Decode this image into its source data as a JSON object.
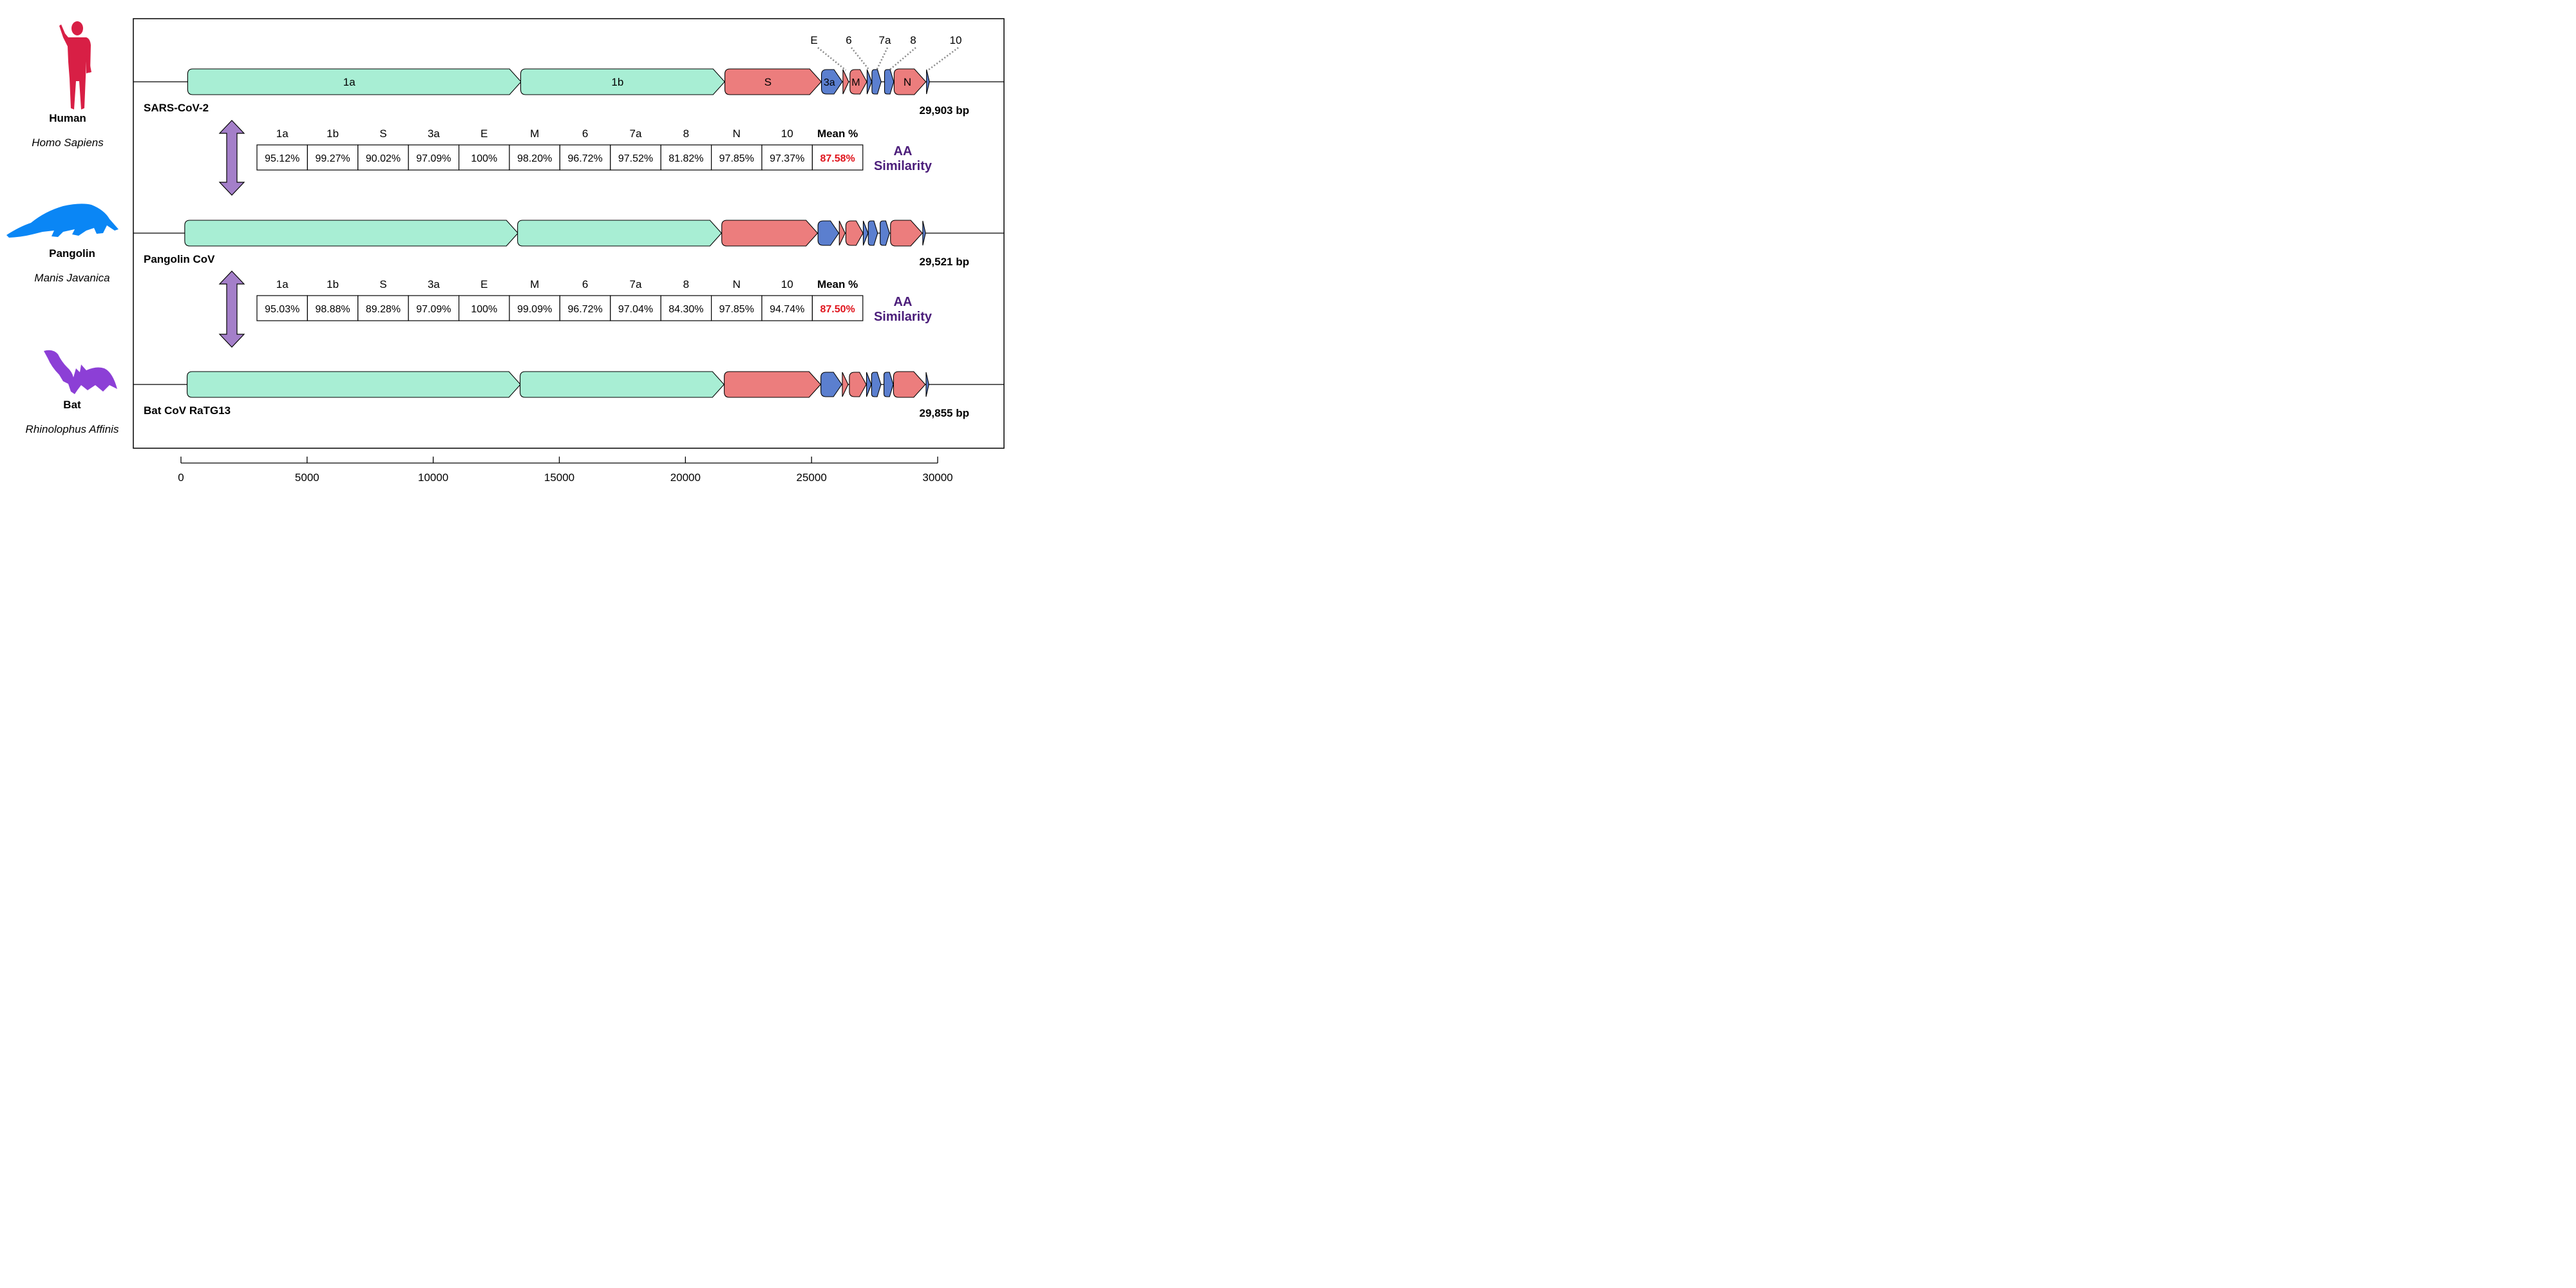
{
  "colors": {
    "orf1": "#a8eed4",
    "structural": "#ec7d7d",
    "accessory": "#5b7fcf",
    "arrow": "#a47fc9",
    "mean_value": "#e0141c",
    "similarity_label": "#4b1d7a",
    "human": "#d81f45",
    "pangolin": "#0a86f5",
    "bat": "#8c3fd6"
  },
  "species": [
    {
      "common": "Human",
      "latin": "Homo Sapiens",
      "icon": "human-silhouette-icon"
    },
    {
      "common": "Pangolin",
      "latin": "Manis Javanica",
      "icon": "pangolin-silhouette-icon"
    },
    {
      "common": "Bat",
      "latin": "Rhinolophus Affinis",
      "icon": "bat-silhouette-icon"
    }
  ],
  "chart_data": {
    "type": "genome-map",
    "axis": {
      "min": 0,
      "max": 30000,
      "ticks": [
        0,
        5000,
        10000,
        15000,
        20000,
        25000,
        30000
      ]
    },
    "genomes": [
      {
        "name": "SARS-CoV-2",
        "length_label": "29,903 bp",
        "genes": [
          {
            "id": "1a",
            "start": 266,
            "end": 13483,
            "kind": "orf1",
            "label": "1a"
          },
          {
            "id": "1b",
            "start": 13468,
            "end": 21555,
            "kind": "orf1",
            "label": "1b"
          },
          {
            "id": "S",
            "start": 21563,
            "end": 25384,
            "kind": "structural",
            "label": "S"
          },
          {
            "id": "3a",
            "start": 25393,
            "end": 26220,
            "kind": "accessory",
            "label": "3a"
          },
          {
            "id": "E",
            "start": 26245,
            "end": 26472,
            "kind": "structural",
            "label": ""
          },
          {
            "id": "M",
            "start": 26523,
            "end": 27191,
            "kind": "structural",
            "label": "M"
          },
          {
            "id": "6",
            "start": 27202,
            "end": 27387,
            "kind": "accessory",
            "label": ""
          },
          {
            "id": "7a",
            "start": 27394,
            "end": 27759,
            "kind": "accessory",
            "label": ""
          },
          {
            "id": "8",
            "start": 27894,
            "end": 28259,
            "kind": "accessory",
            "label": ""
          },
          {
            "id": "N",
            "start": 28274,
            "end": 29533,
            "kind": "structural",
            "label": "N"
          },
          {
            "id": "10",
            "start": 29558,
            "end": 29674,
            "kind": "accessory",
            "label": ""
          }
        ],
        "callouts": [
          "E",
          "6",
          "7a",
          "8",
          "10"
        ]
      },
      {
        "name": "Pangolin CoV",
        "length_label": "29,521 bp",
        "genes": [
          {
            "id": "1a",
            "start": 150,
            "end": 13360,
            "kind": "orf1",
            "label": ""
          },
          {
            "id": "1b",
            "start": 13345,
            "end": 21430,
            "kind": "orf1",
            "label": ""
          },
          {
            "id": "S",
            "start": 21440,
            "end": 25240,
            "kind": "structural",
            "label": ""
          },
          {
            "id": "3a",
            "start": 25255,
            "end": 26080,
            "kind": "accessory",
            "label": ""
          },
          {
            "id": "E",
            "start": 26100,
            "end": 26330,
            "kind": "structural",
            "label": ""
          },
          {
            "id": "M",
            "start": 26360,
            "end": 27040,
            "kind": "structural",
            "label": ""
          },
          {
            "id": "6",
            "start": 27050,
            "end": 27240,
            "kind": "accessory",
            "label": ""
          },
          {
            "id": "7a",
            "start": 27250,
            "end": 27620,
            "kind": "accessory",
            "label": ""
          },
          {
            "id": "8",
            "start": 27720,
            "end": 28090,
            "kind": "accessory",
            "label": ""
          },
          {
            "id": "N",
            "start": 28130,
            "end": 29390,
            "kind": "structural",
            "label": ""
          },
          {
            "id": "10",
            "start": 29410,
            "end": 29520,
            "kind": "accessory",
            "label": ""
          }
        ],
        "callouts": []
      },
      {
        "name": "Bat CoV RaTG13",
        "length_label": "29,855 bp",
        "genes": [
          {
            "id": "1a",
            "start": 245,
            "end": 13460,
            "kind": "orf1",
            "label": ""
          },
          {
            "id": "1b",
            "start": 13445,
            "end": 21530,
            "kind": "orf1",
            "label": ""
          },
          {
            "id": "S",
            "start": 21540,
            "end": 25360,
            "kind": "structural",
            "label": ""
          },
          {
            "id": "3a",
            "start": 25370,
            "end": 26200,
            "kind": "accessory",
            "label": ""
          },
          {
            "id": "E",
            "start": 26220,
            "end": 26450,
            "kind": "structural",
            "label": ""
          },
          {
            "id": "M",
            "start": 26500,
            "end": 27170,
            "kind": "structural",
            "label": ""
          },
          {
            "id": "6",
            "start": 27180,
            "end": 27370,
            "kind": "accessory",
            "label": ""
          },
          {
            "id": "7a",
            "start": 27380,
            "end": 27750,
            "kind": "accessory",
            "label": ""
          },
          {
            "id": "8",
            "start": 27870,
            "end": 28240,
            "kind": "accessory",
            "label": ""
          },
          {
            "id": "N",
            "start": 28250,
            "end": 29510,
            "kind": "structural",
            "label": ""
          },
          {
            "id": "10",
            "start": 29540,
            "end": 29650,
            "kind": "accessory",
            "label": ""
          }
        ],
        "callouts": []
      }
    ],
    "similarity_tables": [
      {
        "headers": [
          "1a",
          "1b",
          "S",
          "3a",
          "E",
          "M",
          "6",
          "7a",
          "8",
          "N",
          "10",
          "Mean %"
        ],
        "values": [
          "95.12%",
          "99.27%",
          "90.02%",
          "97.09%",
          "100%",
          "98.20%",
          "96.72%",
          "97.52%",
          "81.82%",
          "97.85%",
          "97.37%",
          "87.58%"
        ],
        "label_line1": "AA",
        "label_line2": "Similarity"
      },
      {
        "headers": [
          "1a",
          "1b",
          "S",
          "3a",
          "E",
          "M",
          "6",
          "7a",
          "8",
          "N",
          "10",
          "Mean %"
        ],
        "values": [
          "95.03%",
          "98.88%",
          "89.28%",
          "97.09%",
          "100%",
          "99.09%",
          "96.72%",
          "97.04%",
          "84.30%",
          "97.85%",
          "94.74%",
          "87.50%"
        ],
        "label_line1": "AA",
        "label_line2": "Similarity"
      }
    ]
  }
}
